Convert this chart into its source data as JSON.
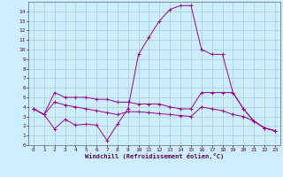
{
  "xlabel": "Windchill (Refroidissement éolien,°C)",
  "background_color": "#cceeff",
  "grid_color": "#aacccc",
  "line_color": "#990099",
  "xlim": [
    -0.5,
    23.5
  ],
  "ylim": [
    0,
    15
  ],
  "xticks": [
    0,
    1,
    2,
    3,
    4,
    5,
    6,
    7,
    8,
    9,
    10,
    11,
    12,
    13,
    14,
    15,
    16,
    17,
    18,
    19,
    20,
    21,
    22,
    23
  ],
  "yticks": [
    0,
    1,
    2,
    3,
    4,
    5,
    6,
    7,
    8,
    9,
    10,
    11,
    12,
    13,
    14
  ],
  "series1_x": [
    0,
    1,
    2,
    3,
    4,
    5,
    6,
    7,
    8,
    9,
    10,
    11,
    12,
    13,
    14,
    15,
    16,
    17,
    18,
    19,
    20,
    21,
    22,
    23
  ],
  "series1_y": [
    3.8,
    3.2,
    1.7,
    2.7,
    2.1,
    2.2,
    2.1,
    0.5,
    2.2,
    3.8,
    9.5,
    11.3,
    13.0,
    14.2,
    14.6,
    14.6,
    10.0,
    9.5,
    9.5,
    5.5,
    3.8,
    2.5,
    1.8,
    1.5
  ],
  "series2_x": [
    0,
    1,
    2,
    3,
    4,
    5,
    6,
    7,
    8,
    9,
    10,
    11,
    12,
    13,
    14,
    15,
    16,
    17,
    18,
    19,
    20,
    21,
    22,
    23
  ],
  "series2_y": [
    3.8,
    3.2,
    5.5,
    5.0,
    5.0,
    5.0,
    4.8,
    4.8,
    4.5,
    4.5,
    4.3,
    4.3,
    4.3,
    4.0,
    3.8,
    3.8,
    5.5,
    5.5,
    5.5,
    5.5,
    3.8,
    2.5,
    1.8,
    1.5
  ],
  "series3_x": [
    0,
    1,
    2,
    3,
    4,
    5,
    6,
    7,
    8,
    9,
    10,
    11,
    12,
    13,
    14,
    15,
    16,
    17,
    18,
    19,
    20,
    21,
    22,
    23
  ],
  "series3_y": [
    3.8,
    3.2,
    4.5,
    4.2,
    4.0,
    3.8,
    3.6,
    3.4,
    3.2,
    3.5,
    3.5,
    3.4,
    3.3,
    3.2,
    3.1,
    3.0,
    4.0,
    3.8,
    3.6,
    3.2,
    3.0,
    2.5,
    1.8,
    1.5
  ]
}
